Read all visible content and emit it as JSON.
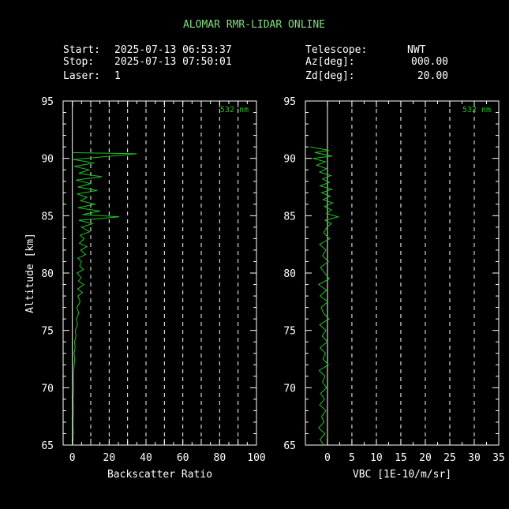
{
  "title": "ALOMAR RMR-LIDAR ONLINE",
  "info": {
    "start_label": "Start:",
    "start_value": "2025-07-13 06:53:37",
    "stop_label": "Stop:",
    "stop_value": "2025-07-13 07:50:01",
    "laser_label": "Laser:",
    "laser_value": "1",
    "telescope_label": "Telescope:",
    "telescope_value": "NWT",
    "az_label": "Az[deg]:",
    "az_value": "000.00",
    "zd_label": "Zd[deg]:",
    "zd_value": "20.00"
  },
  "colors": {
    "background": "#000000",
    "axes": "#ffffff",
    "profile": "#22c422",
    "title": "#7fe07f"
  },
  "chart_data": [
    {
      "type": "line",
      "ylabel": "Altitude [km]",
      "xlabel": "Backscatter Ratio",
      "wavelength_label": "532 nm",
      "xlim": [
        -5,
        100
      ],
      "ylim": [
        65,
        95
      ],
      "xticks": [
        0,
        10,
        20,
        30,
        40,
        50,
        60,
        70,
        80,
        90,
        100
      ],
      "xtick_labels": [
        "0",
        "20",
        "40",
        "60",
        "80",
        "100"
      ],
      "xtick_label_values": [
        0,
        20,
        40,
        60,
        80,
        100
      ],
      "yticks": [
        65,
        70,
        75,
        80,
        85,
        90,
        95
      ],
      "ytick_labels": [
        "65",
        "70",
        "75",
        "80",
        "85",
        "90",
        "95"
      ],
      "grid": true,
      "series": [
        {
          "values": [
            [
              0.3,
              65.0
            ],
            [
              0.6,
              66.0
            ],
            [
              0.4,
              67.0
            ],
            [
              0.7,
              68.0
            ],
            [
              0.5,
              69.0
            ],
            [
              0.8,
              70.0
            ],
            [
              0.6,
              71.0
            ],
            [
              1.0,
              72.0
            ],
            [
              1.3,
              72.5
            ],
            [
              0.9,
              73.0
            ],
            [
              1.5,
              73.5
            ],
            [
              1.2,
              74.0
            ],
            [
              2.0,
              74.5
            ],
            [
              1.6,
              75.0
            ],
            [
              2.8,
              75.5
            ],
            [
              2.2,
              76.0
            ],
            [
              3.5,
              76.5
            ],
            [
              2.5,
              77.0
            ],
            [
              4.2,
              77.5
            ],
            [
              3.0,
              78.0
            ],
            [
              5.5,
              78.3
            ],
            [
              2.8,
              78.6
            ],
            [
              6.2,
              79.0
            ],
            [
              3.3,
              79.3
            ],
            [
              4.8,
              79.6
            ],
            [
              2.6,
              80.0
            ],
            [
              6.0,
              80.3
            ],
            [
              4.0,
              80.6
            ],
            [
              5.0,
              81.0
            ],
            [
              3.0,
              81.3
            ],
            [
              7.2,
              81.6
            ],
            [
              4.5,
              82.0
            ],
            [
              8.0,
              82.3
            ],
            [
              3.8,
              82.6
            ],
            [
              6.5,
              83.0
            ],
            [
              4.2,
              83.3
            ],
            [
              9.5,
              83.6
            ],
            [
              5.0,
              84.0
            ],
            [
              11.0,
              84.3
            ],
            [
              3.5,
              84.6
            ],
            [
              25.5,
              84.9
            ],
            [
              5.5,
              85.1
            ],
            [
              15.0,
              85.4
            ],
            [
              3.0,
              85.7
            ],
            [
              12.5,
              86.0
            ],
            [
              4.5,
              86.3
            ],
            [
              8.0,
              86.6
            ],
            [
              2.5,
              86.9
            ],
            [
              13.5,
              87.2
            ],
            [
              3.0,
              87.5
            ],
            [
              10.0,
              87.8
            ],
            [
              2.0,
              88.1
            ],
            [
              16.0,
              88.4
            ],
            [
              3.5,
              88.7
            ],
            [
              9.0,
              89.0
            ],
            [
              1.0,
              89.3
            ],
            [
              12.0,
              89.6
            ],
            [
              0.5,
              89.9
            ],
            [
              35.0,
              90.4
            ],
            [
              0.0,
              90.5
            ]
          ]
        }
      ]
    },
    {
      "type": "line",
      "ylabel": "",
      "xlabel": "VBC [1E-10/m/sr]",
      "wavelength_label": "532 nm",
      "xlim": [
        -4.5,
        35
      ],
      "ylim": [
        65,
        95
      ],
      "xticks": [
        0,
        5,
        10,
        15,
        20,
        25,
        30,
        35
      ],
      "xtick_labels": [
        "0",
        "5",
        "10",
        "15",
        "20",
        "25",
        "30",
        "35"
      ],
      "xtick_label_values": [
        0,
        5,
        10,
        15,
        20,
        25,
        30,
        35
      ],
      "yticks": [
        65,
        70,
        75,
        80,
        85,
        90,
        95
      ],
      "ytick_labels": [
        "65",
        "70",
        "75",
        "80",
        "85",
        "90",
        "95"
      ],
      "grid": true,
      "series": [
        {
          "values": [
            [
              -0.8,
              65.0
            ],
            [
              -1.5,
              65.5
            ],
            [
              -0.5,
              66.0
            ],
            [
              -1.8,
              66.5
            ],
            [
              -0.7,
              67.0
            ],
            [
              -1.2,
              67.5
            ],
            [
              -0.3,
              68.0
            ],
            [
              -1.6,
              68.5
            ],
            [
              -0.6,
              69.0
            ],
            [
              -1.4,
              69.5
            ],
            [
              -0.2,
              70.0
            ],
            [
              -1.0,
              70.5
            ],
            [
              -0.5,
              71.0
            ],
            [
              -1.7,
              71.5
            ],
            [
              0.2,
              72.0
            ],
            [
              -0.9,
              72.5
            ],
            [
              -0.4,
              73.0
            ],
            [
              -1.5,
              73.5
            ],
            [
              0.0,
              74.0
            ],
            [
              -1.1,
              74.5
            ],
            [
              -0.3,
              75.0
            ],
            [
              -1.6,
              75.5
            ],
            [
              0.3,
              76.0
            ],
            [
              -0.8,
              76.5
            ],
            [
              -1.3,
              77.0
            ],
            [
              0.1,
              77.5
            ],
            [
              -1.5,
              78.0
            ],
            [
              -0.2,
              78.5
            ],
            [
              -1.8,
              79.0
            ],
            [
              0.4,
              79.5
            ],
            [
              -0.6,
              80.0
            ],
            [
              -1.4,
              80.5
            ],
            [
              0.2,
              81.0
            ],
            [
              -1.0,
              81.5
            ],
            [
              -0.3,
              82.0
            ],
            [
              -1.6,
              82.5
            ],
            [
              0.5,
              83.0
            ],
            [
              -0.8,
              83.5
            ],
            [
              -0.1,
              84.0
            ],
            [
              0.8,
              84.3
            ],
            [
              -0.5,
              84.6
            ],
            [
              2.2,
              84.9
            ],
            [
              -0.2,
              85.2
            ],
            [
              0.8,
              85.5
            ],
            [
              -0.6,
              85.8
            ],
            [
              1.1,
              86.1
            ],
            [
              -0.9,
              86.4
            ],
            [
              0.6,
              86.7
            ],
            [
              -1.2,
              87.0
            ],
            [
              0.9,
              87.3
            ],
            [
              -1.5,
              87.6
            ],
            [
              0.4,
              87.9
            ],
            [
              -1.0,
              88.2
            ],
            [
              0.7,
              88.5
            ],
            [
              -1.6,
              88.8
            ],
            [
              -0.2,
              89.1
            ],
            [
              -2.2,
              89.4
            ],
            [
              -0.4,
              89.7
            ],
            [
              -3.0,
              90.0
            ],
            [
              1.0,
              90.2
            ],
            [
              -2.6,
              90.5
            ],
            [
              0.3,
              90.7
            ],
            [
              -3.5,
              91.0
            ]
          ]
        }
      ]
    }
  ]
}
